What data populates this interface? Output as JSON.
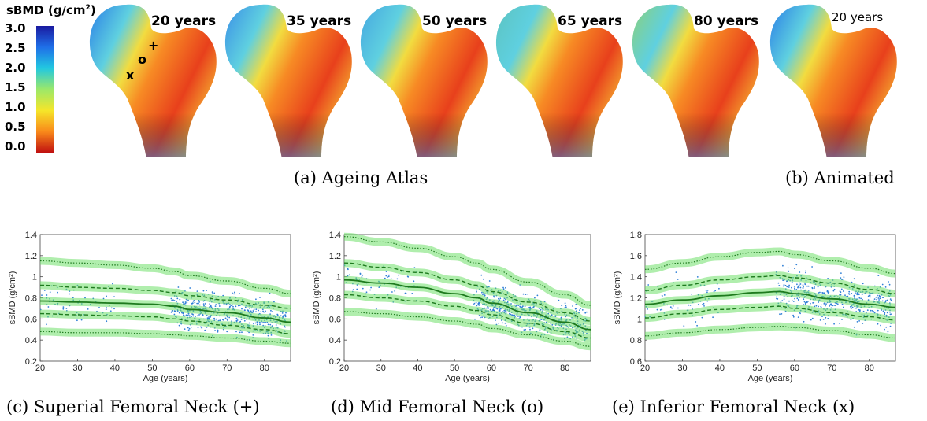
{
  "colorbar": {
    "title": "sBMD (g/cm",
    "title_sup": "2",
    "title_end": ")",
    "ticks": [
      "3.0",
      "2.5",
      "2.0",
      "1.5",
      "1.0",
      "0.5",
      "0.0"
    ],
    "colors": [
      "#1a1aa0",
      "#1f6fe8",
      "#22c8e0",
      "#9be86a",
      "#f5e62a",
      "#f98a1a",
      "#c01010"
    ]
  },
  "atlas": {
    "labels": [
      "20 years",
      "35 years",
      "50 years",
      "65 years",
      "80 years"
    ],
    "markers": {
      "plus": "+",
      "o": "o",
      "x": "x"
    },
    "caption": "(a) Ageing Atlas"
  },
  "animated": {
    "label": "20 years",
    "caption": "(b) Animated"
  },
  "chart_data": [
    {
      "type": "scatter",
      "caption": "(c) Superial Femoral Neck (+)",
      "xlabel": "Age (years)",
      "ylabel": "sBMD (g/cm²)",
      "xlim": [
        20,
        87
      ],
      "ylim": [
        0.2,
        1.4
      ],
      "xticks": [
        "20",
        "30",
        "40",
        "50",
        "60",
        "70",
        "80"
      ],
      "yticks": [
        "0.2",
        "0.4",
        "0.6",
        "0.8",
        "1",
        "1.2",
        "1.4"
      ],
      "x": [
        20,
        30,
        40,
        50,
        56,
        60,
        70,
        80,
        87
      ],
      "series": [
        {
          "values": [
            1.15,
            1.13,
            1.11,
            1.08,
            1.05,
            1.01,
            0.96,
            0.89,
            0.84
          ]
        },
        {
          "values": [
            0.92,
            0.9,
            0.89,
            0.87,
            0.85,
            0.82,
            0.78,
            0.73,
            0.7
          ]
        },
        {
          "values": [
            0.77,
            0.76,
            0.75,
            0.74,
            0.72,
            0.69,
            0.66,
            0.61,
            0.57
          ]
        },
        {
          "values": [
            0.65,
            0.64,
            0.63,
            0.62,
            0.6,
            0.58,
            0.54,
            0.5,
            0.46
          ]
        },
        {
          "values": [
            0.48,
            0.47,
            0.47,
            0.46,
            0.45,
            0.44,
            0.42,
            0.39,
            0.37
          ]
        }
      ],
      "scatter_density": {
        "young": [
          20,
          40,
          0.45,
          1.2,
          70
        ],
        "old": [
          55,
          86,
          0.3,
          1.2,
          520
        ]
      }
    },
    {
      "type": "scatter",
      "caption": "(d) Mid Femoral Neck (o)",
      "xlabel": "Age (years)",
      "ylabel": "sBMD (g/cm²)",
      "xlim": [
        20,
        87
      ],
      "ylim": [
        0.2,
        1.4
      ],
      "xticks": [
        "20",
        "30",
        "40",
        "50",
        "60",
        "70",
        "80"
      ],
      "yticks": [
        "0.2",
        "0.4",
        "0.6",
        "0.8",
        "1",
        "1.2",
        "1.4"
      ],
      "x": [
        20,
        30,
        40,
        50,
        56,
        60,
        70,
        80,
        87
      ],
      "series": [
        {
          "values": [
            1.38,
            1.33,
            1.27,
            1.19,
            1.13,
            1.07,
            0.95,
            0.83,
            0.73
          ]
        },
        {
          "values": [
            1.13,
            1.09,
            1.04,
            0.97,
            0.92,
            0.86,
            0.76,
            0.66,
            0.58
          ]
        },
        {
          "values": [
            0.97,
            0.94,
            0.9,
            0.84,
            0.8,
            0.75,
            0.66,
            0.57,
            0.5
          ]
        },
        {
          "values": [
            0.83,
            0.8,
            0.77,
            0.72,
            0.68,
            0.64,
            0.56,
            0.48,
            0.42
          ]
        },
        {
          "values": [
            0.67,
            0.65,
            0.62,
            0.58,
            0.55,
            0.51,
            0.45,
            0.39,
            0.34
          ]
        }
      ],
      "scatter_density": {
        "young": [
          20,
          40,
          0.6,
          1.25,
          70
        ],
        "old": [
          55,
          86,
          0.35,
          1.15,
          520
        ]
      }
    },
    {
      "type": "scatter",
      "caption": "(e) Inferior Femoral Neck (x)",
      "xlabel": "Age (years)",
      "ylabel": "sBMD (g/cm²)",
      "xlim": [
        20,
        87
      ],
      "ylim": [
        0.6,
        1.8
      ],
      "xticks": [
        "20",
        "30",
        "40",
        "50",
        "60",
        "70",
        "80"
      ],
      "yticks": [
        "0.6",
        "0.8",
        "1",
        "1.2",
        "1.4",
        "1.6",
        "1.8"
      ],
      "x": [
        20,
        30,
        40,
        50,
        56,
        60,
        70,
        80,
        87
      ],
      "series": [
        {
          "values": [
            1.47,
            1.53,
            1.59,
            1.63,
            1.64,
            1.61,
            1.55,
            1.48,
            1.43
          ]
        },
        {
          "values": [
            1.27,
            1.32,
            1.37,
            1.4,
            1.41,
            1.39,
            1.34,
            1.28,
            1.24
          ]
        },
        {
          "values": [
            1.14,
            1.18,
            1.22,
            1.25,
            1.26,
            1.24,
            1.19,
            1.14,
            1.11
          ]
        },
        {
          "values": [
            1.01,
            1.05,
            1.09,
            1.11,
            1.12,
            1.1,
            1.06,
            1.02,
            0.99
          ]
        },
        {
          "values": [
            0.84,
            0.87,
            0.9,
            0.92,
            0.93,
            0.92,
            0.89,
            0.85,
            0.82
          ]
        }
      ],
      "scatter_density": {
        "young": [
          20,
          40,
          0.9,
          1.75,
          70
        ],
        "old": [
          55,
          86,
          0.7,
          1.8,
          520
        ]
      }
    }
  ]
}
